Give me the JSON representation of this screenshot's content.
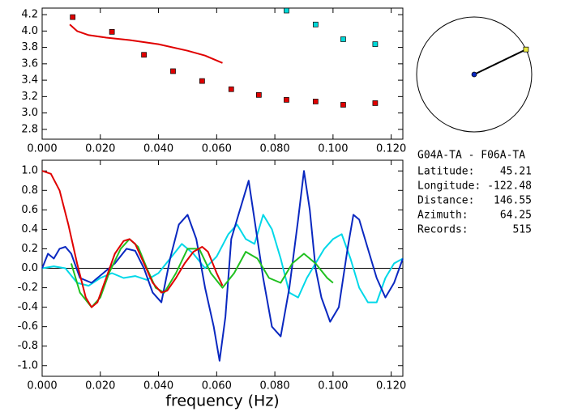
{
  "chart_data": [
    {
      "type": "scatter",
      "xlim": [
        0,
        0.124
      ],
      "ylim": [
        2.68,
        4.28
      ],
      "xticks": [
        {
          "value": 0,
          "label": "0.000"
        },
        {
          "value": 0.02,
          "label": "0.020"
        },
        {
          "value": 0.04,
          "label": "0.040"
        },
        {
          "value": 0.06,
          "label": "0.060"
        },
        {
          "value": 0.08,
          "label": "0.080"
        },
        {
          "value": 0.1,
          "label": "0.100"
        },
        {
          "value": 0.12,
          "label": "0.120"
        }
      ],
      "yticks": [
        {
          "value": 2.8,
          "label": "2.8"
        },
        {
          "value": 3.0,
          "label": "3.0"
        },
        {
          "value": 3.2,
          "label": "3.2"
        },
        {
          "value": 3.4,
          "label": "3.4"
        },
        {
          "value": 3.6,
          "label": "3.6"
        },
        {
          "value": 3.8,
          "label": "3.8"
        },
        {
          "value": 4.0,
          "label": "4.0"
        },
        {
          "value": 4.2,
          "label": "4.2"
        }
      ],
      "series": [
        {
          "mode": "markers",
          "color": "#e00000",
          "x": [
            0.0105,
            0.024,
            0.035,
            0.045,
            0.055,
            0.065,
            0.0745,
            0.084,
            0.094,
            0.1035,
            0.1145
          ],
          "values": [
            4.17,
            3.99,
            3.71,
            3.51,
            3.39,
            3.29,
            3.22,
            3.16,
            3.14,
            3.1,
            3.12
          ]
        },
        {
          "mode": "markers",
          "color": "#00d8d8",
          "x": [
            0.084,
            0.094,
            0.1035,
            0.1145
          ],
          "values": [
            4.25,
            4.08,
            3.9,
            3.84
          ]
        },
        {
          "mode": "line",
          "color": "#e00000",
          "x": [
            0.0095,
            0.012,
            0.016,
            0.022,
            0.03,
            0.04,
            0.05,
            0.056,
            0.062
          ],
          "values": [
            4.08,
            4.0,
            3.95,
            3.92,
            3.89,
            3.84,
            3.76,
            3.7,
            3.61
          ]
        }
      ]
    },
    {
      "type": "line",
      "xlabel": "frequency (Hz)",
      "xlim": [
        0,
        0.124
      ],
      "ylim": [
        -1.11,
        1.11
      ],
      "xticks": [
        {
          "value": 0,
          "label": "0.000"
        },
        {
          "value": 0.02,
          "label": "0.020"
        },
        {
          "value": 0.04,
          "label": "0.040"
        },
        {
          "value": 0.06,
          "label": "0.060"
        },
        {
          "value": 0.08,
          "label": "0.080"
        },
        {
          "value": 0.1,
          "label": "0.100"
        },
        {
          "value": 0.12,
          "label": "0.120"
        }
      ],
      "yticks": [
        {
          "value": -1.0,
          "label": "-1.0"
        },
        {
          "value": -0.8,
          "label": "-0.8"
        },
        {
          "value": -0.6,
          "label": "-0.6"
        },
        {
          "value": -0.4,
          "label": "-0.4"
        },
        {
          "value": -0.2,
          "label": "-0.2"
        },
        {
          "value": 0,
          "label": "0.0"
        },
        {
          "value": 0.2,
          "label": "0.2"
        },
        {
          "value": 0.4,
          "label": "0.4"
        },
        {
          "value": 0.6,
          "label": "0.6"
        },
        {
          "value": 0.8,
          "label": "0.8"
        },
        {
          "value": 1.0,
          "label": "1.0"
        }
      ],
      "series": [
        {
          "mode": "line",
          "color": "#00d8e8",
          "x": [
            0,
            0.004,
            0.008,
            0.012,
            0.016,
            0.02,
            0.024,
            0.028,
            0.032,
            0.036,
            0.04,
            0.044,
            0.048,
            0.052,
            0.056,
            0.06,
            0.064,
            0.067,
            0.07,
            0.073,
            0.076,
            0.079,
            0.082,
            0.085,
            0.088,
            0.091,
            0.094,
            0.097,
            0.1,
            0.103,
            0.106,
            0.109,
            0.112,
            0.115,
            0.118,
            0.121,
            0.124
          ],
          "values": [
            0.0,
            0.02,
            0.0,
            -0.15,
            -0.18,
            -0.1,
            -0.05,
            -0.1,
            -0.08,
            -0.12,
            -0.05,
            0.1,
            0.25,
            0.15,
            0.0,
            0.12,
            0.35,
            0.45,
            0.3,
            0.25,
            0.55,
            0.4,
            0.1,
            -0.25,
            -0.3,
            -0.1,
            0.05,
            0.2,
            0.3,
            0.35,
            0.1,
            -0.2,
            -0.35,
            -0.35,
            -0.1,
            0.05,
            0.1
          ]
        },
        {
          "mode": "line",
          "color": "#0a28c0",
          "x": [
            0,
            0.002,
            0.004,
            0.006,
            0.008,
            0.01,
            0.013,
            0.017,
            0.021,
            0.025,
            0.029,
            0.032,
            0.035,
            0.038,
            0.041,
            0.044,
            0.047,
            0.05,
            0.053,
            0.056,
            0.059,
            0.061,
            0.063,
            0.065,
            0.067,
            0.069,
            0.071,
            0.073,
            0.076,
            0.079,
            0.082,
            0.085,
            0.088,
            0.09,
            0.092,
            0.094,
            0.096,
            0.099,
            0.102,
            0.105,
            0.107,
            0.109,
            0.112,
            0.115,
            0.118,
            0.121,
            0.124
          ],
          "values": [
            0.0,
            0.15,
            0.1,
            0.2,
            0.22,
            0.15,
            -0.1,
            -0.15,
            -0.05,
            0.05,
            0.2,
            0.18,
            0.0,
            -0.25,
            -0.35,
            0.1,
            0.45,
            0.55,
            0.3,
            -0.2,
            -0.6,
            -0.95,
            -0.5,
            0.3,
            0.5,
            0.7,
            0.9,
            0.5,
            -0.1,
            -0.6,
            -0.7,
            -0.2,
            0.5,
            1.0,
            0.6,
            0.0,
            -0.3,
            -0.55,
            -0.4,
            0.2,
            0.55,
            0.5,
            0.2,
            -0.1,
            -0.3,
            -0.15,
            0.1
          ]
        },
        {
          "mode": "line",
          "color": "#20c020",
          "x": [
            0.01,
            0.013,
            0.017,
            0.02,
            0.023,
            0.027,
            0.03,
            0.033,
            0.036,
            0.039,
            0.042,
            0.046,
            0.05,
            0.054,
            0.058,
            0.062,
            0.066,
            0.07,
            0.074,
            0.078,
            0.082,
            0.086,
            0.09,
            0.094,
            0.098,
            0.1
          ],
          "values": [
            0.05,
            -0.25,
            -0.4,
            -0.3,
            -0.05,
            0.2,
            0.3,
            0.22,
            0.0,
            -0.2,
            -0.25,
            -0.05,
            0.2,
            0.2,
            -0.05,
            -0.2,
            -0.05,
            0.17,
            0.1,
            -0.1,
            -0.15,
            0.05,
            0.15,
            0.05,
            -0.1,
            -0.15
          ]
        },
        {
          "mode": "line",
          "color": "#e00000",
          "x": [
            0,
            0.003,
            0.006,
            0.009,
            0.012,
            0.015,
            0.017,
            0.019,
            0.022,
            0.025,
            0.028,
            0.03,
            0.032,
            0.035,
            0.038,
            0.041,
            0.043,
            0.046,
            0.049,
            0.052,
            0.055,
            0.057,
            0.06,
            0.062
          ],
          "values": [
            1.0,
            0.97,
            0.8,
            0.45,
            0.05,
            -0.3,
            -0.4,
            -0.35,
            -0.1,
            0.15,
            0.28,
            0.3,
            0.25,
            0.05,
            -0.15,
            -0.25,
            -0.23,
            -0.1,
            0.05,
            0.17,
            0.22,
            0.17,
            -0.05,
            -0.18
          ]
        }
      ]
    }
  ],
  "info": {
    "title": "G04A-TA - F06A-TA",
    "azimuth": 64.25,
    "rows": [
      {
        "label": "Latitude:",
        "value": 45.21
      },
      {
        "label": "Longitude:",
        "value": -122.48
      },
      {
        "label": "Distance:",
        "value": 146.55
      },
      {
        "label": "Azimuth:",
        "value": 64.25
      },
      {
        "label": "Records:",
        "value": 515
      }
    ]
  }
}
